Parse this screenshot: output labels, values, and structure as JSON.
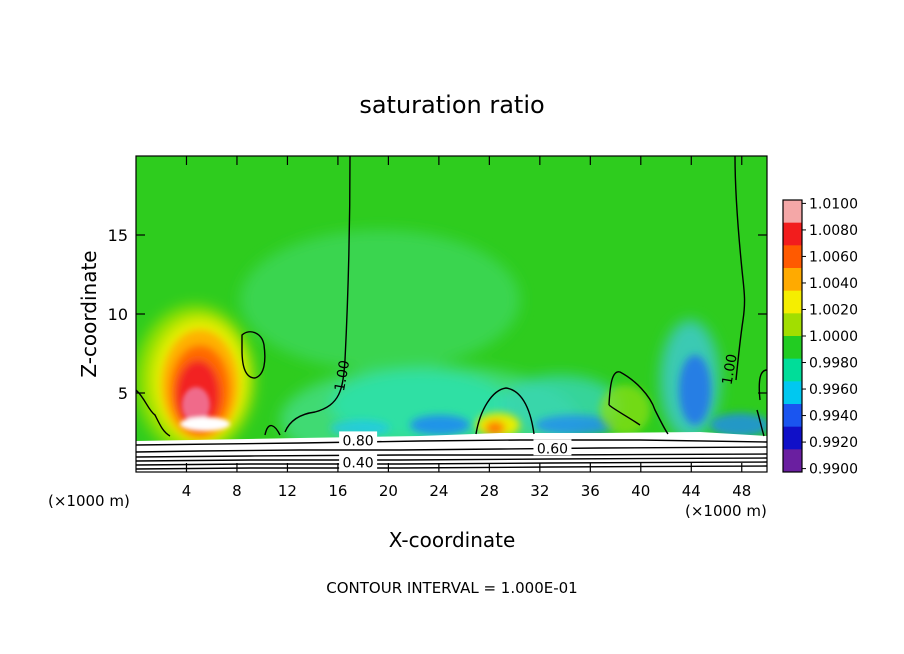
{
  "chart_data": {
    "type": "heatmap",
    "title": "saturation ratio",
    "xlabel": "X-coordinate",
    "ylabel": "Z-coordinate",
    "x_unit_left": "(×1000 m)",
    "x_unit_right": "(×1000 m)",
    "xlim": [
      0,
      50
    ],
    "ylim": [
      0,
      20
    ],
    "x_ticks": [
      4,
      8,
      12,
      16,
      20,
      24,
      28,
      32,
      36,
      40,
      44,
      48
    ],
    "y_ticks": [
      5,
      10,
      15
    ],
    "footer": "CONTOUR INTERVAL = 1.000E-01",
    "colorbar": {
      "labels": [
        "1.0100",
        "1.0080",
        "1.0060",
        "1.0040",
        "1.0020",
        "1.0000",
        "0.9980",
        "0.9960",
        "0.9940",
        "0.9920",
        "0.9900"
      ],
      "colors": [
        "#f4a7a7",
        "#f21d1d",
        "#ff5a00",
        "#ffaa00",
        "#f5ee00",
        "#a2de00",
        "#22cc22",
        "#00dd99",
        "#00c8f0",
        "#1a55f0",
        "#1010c8",
        "#6a1fa0"
      ]
    },
    "contour_labels": [
      {
        "text": "1.00",
        "x": 16.3,
        "y": 6.1
      },
      {
        "text": "0.80",
        "x": 17.6,
        "y": 2.0
      },
      {
        "text": "0.40",
        "x": 17.6,
        "y": 0.6
      },
      {
        "text": "0.60",
        "x": 33.0,
        "y": 1.5
      },
      {
        "text": "1.00",
        "x": 47.0,
        "y": 6.5
      }
    ],
    "grid": false,
    "legend": "right"
  }
}
